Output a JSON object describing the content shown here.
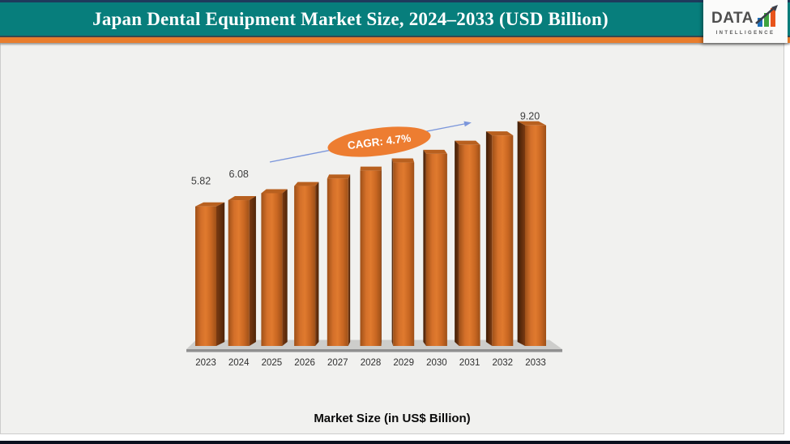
{
  "header": {
    "title": "Japan Dental Equipment Market Size, 2024–2033 (USD Billion)",
    "background_color": "#077E7C",
    "accent_strip_color": "#E87D2D"
  },
  "logo": {
    "brand": "DATA",
    "subtitle": "INTELLIGENCE",
    "bar_colors": [
      "#1E6FB8",
      "#3FA43F",
      "#E8541B"
    ],
    "arrow_color": "#3A3F4A"
  },
  "footer": {
    "caption": "Market Size (in US$ Billion)"
  },
  "chart_data": {
    "type": "bar",
    "style": "3d-perspective",
    "title": "Japan Dental Equipment Market Size, 2024–2033 (USD Billion)",
    "categories": [
      "2023",
      "2024",
      "2025",
      "2026",
      "2027",
      "2028",
      "2029",
      "2030",
      "2031",
      "2032",
      "2033"
    ],
    "values": [
      5.82,
      6.08,
      6.37,
      6.67,
      6.98,
      7.31,
      7.65,
      8.01,
      8.39,
      8.78,
      9.2
    ],
    "data_labels": {
      "2023": "5.82",
      "2024": "6.08",
      "2033": "9.20"
    },
    "annotation": {
      "text": "CAGR: 4.7%",
      "fill": "#ED7D31",
      "text_color": "#FFFFFF"
    },
    "arrow_color": "#7B96DB",
    "xlabel": "Market Size (in US$ Billion)",
    "ylabel": "",
    "ylim": [
      0,
      10
    ],
    "gridlines": false,
    "legend": "none",
    "bar_front_color": "#D96F26",
    "bar_side_color": "#5F2D0C",
    "floor_color": "#CDCDCB",
    "label_color": "#3C3C3C"
  }
}
